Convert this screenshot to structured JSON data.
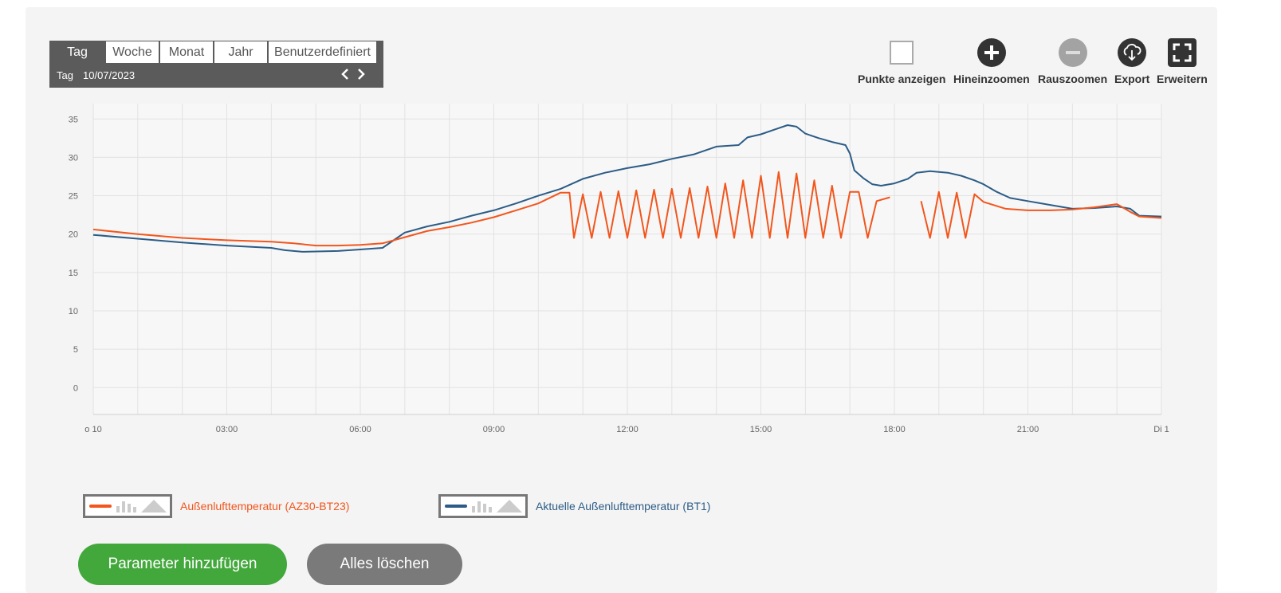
{
  "range": {
    "tabs": [
      {
        "label": "Tag",
        "active": true
      },
      {
        "label": "Woche",
        "active": false
      },
      {
        "label": "Monat",
        "active": false
      },
      {
        "label": "Jahr",
        "active": false
      },
      {
        "label": "Benutzerdefiniert",
        "active": false
      }
    ],
    "period_label": "Tag",
    "date": "10/07/2023",
    "prev_icon": "chevron-left-icon",
    "next_icon": "chevron-right-icon"
  },
  "toolbar": {
    "show_points": "Punkte anzeigen",
    "zoom_in": "Hineinzoomen",
    "zoom_out": "Rauszoomen",
    "export": "Export",
    "expand": "Erweitern"
  },
  "colors": {
    "series_outdoor_az30": "#f2561d",
    "series_outdoor_bt1": "#2c5c86",
    "primary_button": "#43a83c",
    "secondary_button": "#7a7a7a"
  },
  "chart_data": {
    "type": "line",
    "title": "",
    "xlabel": "",
    "ylabel": "",
    "ylim": [
      -3.5,
      37
    ],
    "yticks": [
      0,
      5,
      10,
      15,
      20,
      25,
      30,
      35
    ],
    "xlim": [
      0,
      24
    ],
    "xticks": [
      {
        "value": 0,
        "label": "o 10"
      },
      {
        "value": 3,
        "label": "03:00"
      },
      {
        "value": 6,
        "label": "06:00"
      },
      {
        "value": 9,
        "label": "09:00"
      },
      {
        "value": 12,
        "label": "12:00"
      },
      {
        "value": 15,
        "label": "15:00"
      },
      {
        "value": 18,
        "label": "18:00"
      },
      {
        "value": 21,
        "label": "21:00"
      },
      {
        "value": 24,
        "label": "Di 1"
      }
    ],
    "grid": true,
    "series": [
      {
        "name": "Aktuelle Außenlufttemperatur (BT1)",
        "points": [
          [
            0,
            19.9
          ],
          [
            1,
            19.4
          ],
          [
            2,
            18.9
          ],
          [
            3,
            18.5
          ],
          [
            4,
            18.2
          ],
          [
            4.3,
            17.9
          ],
          [
            4.7,
            17.7
          ],
          [
            5.5,
            17.8
          ],
          [
            6,
            18.0
          ],
          [
            6.5,
            18.2
          ],
          [
            7,
            20.2
          ],
          [
            7.5,
            21.0
          ],
          [
            8,
            21.6
          ],
          [
            8.5,
            22.4
          ],
          [
            9,
            23.1
          ],
          [
            9.5,
            24.0
          ],
          [
            10,
            25.0
          ],
          [
            10.5,
            25.9
          ],
          [
            11,
            27.2
          ],
          [
            11.5,
            28.0
          ],
          [
            12,
            28.6
          ],
          [
            12.5,
            29.1
          ],
          [
            13,
            29.8
          ],
          [
            13.5,
            30.4
          ],
          [
            14,
            31.4
          ],
          [
            14.5,
            31.6
          ],
          [
            14.7,
            32.6
          ],
          [
            15,
            33.0
          ],
          [
            15.3,
            33.6
          ],
          [
            15.6,
            34.2
          ],
          [
            15.8,
            34.0
          ],
          [
            16,
            33.1
          ],
          [
            16.3,
            32.5
          ],
          [
            16.6,
            32.0
          ],
          [
            16.9,
            31.6
          ],
          [
            17,
            30.5
          ],
          [
            17.1,
            28.3
          ],
          [
            17.3,
            27.3
          ],
          [
            17.5,
            26.5
          ],
          [
            17.7,
            26.3
          ],
          [
            18,
            26.6
          ],
          [
            18.3,
            27.2
          ],
          [
            18.5,
            28.0
          ],
          [
            18.8,
            28.2
          ],
          [
            19.2,
            28.0
          ],
          [
            19.5,
            27.6
          ],
          [
            19.8,
            27.0
          ],
          [
            20,
            26.5
          ],
          [
            20.3,
            25.5
          ],
          [
            20.6,
            24.7
          ],
          [
            21,
            24.3
          ],
          [
            21.5,
            23.8
          ],
          [
            22,
            23.3
          ],
          [
            22.5,
            23.4
          ],
          [
            23,
            23.6
          ],
          [
            23.3,
            23.3
          ],
          [
            23.5,
            22.4
          ],
          [
            24,
            22.3
          ]
        ]
      },
      {
        "name": "Außenlufttemperatur (AZ30-BT23)",
        "points": [
          [
            0,
            20.6
          ],
          [
            1,
            20.0
          ],
          [
            2,
            19.5
          ],
          [
            3,
            19.2
          ],
          [
            4,
            19.0
          ],
          [
            4.5,
            18.8
          ],
          [
            5,
            18.5
          ],
          [
            5.5,
            18.5
          ],
          [
            6,
            18.6
          ],
          [
            6.5,
            18.8
          ],
          [
            7,
            19.6
          ],
          [
            7.5,
            20.4
          ],
          [
            8,
            20.9
          ],
          [
            8.5,
            21.5
          ],
          [
            9,
            22.2
          ],
          [
            9.5,
            23.1
          ],
          [
            10,
            24.0
          ],
          [
            10.5,
            25.4
          ],
          [
            10.7,
            25.4
          ],
          [
            10.8,
            19.5
          ],
          [
            11,
            25.2
          ],
          [
            11.2,
            19.5
          ],
          [
            11.4,
            25.5
          ],
          [
            11.6,
            19.5
          ],
          [
            11.8,
            25.6
          ],
          [
            12,
            19.5
          ],
          [
            12.2,
            25.7
          ],
          [
            12.4,
            19.5
          ],
          [
            12.6,
            25.8
          ],
          [
            12.8,
            19.5
          ],
          [
            13,
            25.9
          ],
          [
            13.2,
            19.5
          ],
          [
            13.4,
            26.0
          ],
          [
            13.6,
            19.5
          ],
          [
            13.8,
            26.2
          ],
          [
            14,
            19.5
          ],
          [
            14.2,
            26.6
          ],
          [
            14.4,
            19.5
          ],
          [
            14.6,
            27.0
          ],
          [
            14.8,
            19.5
          ],
          [
            15,
            27.6
          ],
          [
            15.2,
            19.5
          ],
          [
            15.4,
            28.1
          ],
          [
            15.6,
            19.5
          ],
          [
            15.8,
            27.9
          ],
          [
            16,
            19.5
          ],
          [
            16.2,
            27.0
          ],
          [
            16.4,
            19.5
          ],
          [
            16.6,
            26.3
          ],
          [
            16.8,
            19.5
          ],
          [
            17,
            25.5
          ],
          [
            17.2,
            25.5
          ],
          [
            17.4,
            19.5
          ],
          [
            17.6,
            24.3
          ],
          [
            17.9,
            24.8
          ],
          [
            null,
            null
          ],
          [
            18.6,
            24.3
          ],
          [
            18.8,
            19.5
          ],
          [
            19,
            25.5
          ],
          [
            19.2,
            19.5
          ],
          [
            19.4,
            25.4
          ],
          [
            19.6,
            19.5
          ],
          [
            19.8,
            25.2
          ],
          [
            20,
            24.2
          ],
          [
            20.5,
            23.3
          ],
          [
            21,
            23.1
          ],
          [
            21.5,
            23.1
          ],
          [
            22,
            23.2
          ],
          [
            22.5,
            23.5
          ],
          [
            23,
            23.9
          ],
          [
            23.3,
            22.9
          ],
          [
            23.5,
            22.3
          ],
          [
            24,
            22.1
          ]
        ]
      }
    ]
  },
  "legend": [
    {
      "label": "Außenlufttemperatur (AZ30-BT23)",
      "color": "#f2561d"
    },
    {
      "label": "Aktuelle Außenlufttemperatur (BT1)",
      "color": "#2c5c86"
    }
  ],
  "actions": {
    "add_parameter": "Parameter hinzufügen",
    "clear_all": "Alles löschen"
  }
}
